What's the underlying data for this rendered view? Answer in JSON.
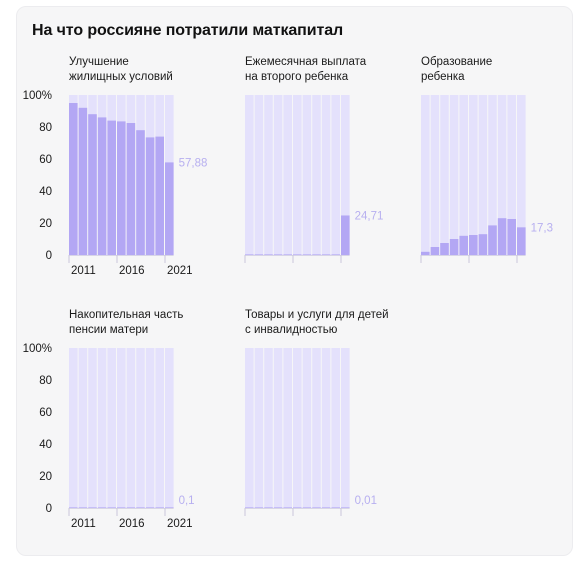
{
  "title": "На что россияне потратили маткапитал",
  "colors": {
    "bar": "#b3a7f4",
    "background_bar": "#e4e1fc",
    "card": "#f6f6f7",
    "value_label": "#b7aff0"
  },
  "chart_data": [
    {
      "type": "bar",
      "title_lines": [
        "Улучшение",
        "жилищных условий"
      ],
      "categories": [
        2011,
        2012,
        2013,
        2014,
        2015,
        2016,
        2017,
        2018,
        2019,
        2020,
        2021
      ],
      "values": [
        95,
        92,
        88,
        86,
        84,
        83.5,
        82.5,
        78,
        73.5,
        74,
        57.88
      ],
      "value_label": "57,88",
      "ylim": [
        0,
        100
      ],
      "yticks": [
        "0",
        "20",
        "40",
        "60",
        "80",
        "100%"
      ],
      "xticks": [
        "2011",
        "2016",
        "2021"
      ]
    },
    {
      "type": "bar",
      "title_lines": [
        "Ежемесячная выплата",
        "на второго ребенка"
      ],
      "categories": [
        2011,
        2012,
        2013,
        2014,
        2015,
        2016,
        2017,
        2018,
        2019,
        2020,
        2021
      ],
      "values": [
        0,
        0,
        0,
        0,
        0,
        0,
        0,
        0,
        0,
        0,
        24.71
      ],
      "value_label": "24,71",
      "ylim": [
        0,
        100
      ]
    },
    {
      "type": "bar",
      "title_lines": [
        "Образование",
        "ребенка"
      ],
      "categories": [
        2011,
        2012,
        2013,
        2014,
        2015,
        2016,
        2017,
        2018,
        2019,
        2020,
        2021
      ],
      "values": [
        2,
        5,
        7.5,
        10,
        12,
        12.5,
        13,
        18.5,
        23,
        22.5,
        17.3
      ],
      "value_label": "17,3",
      "ylim": [
        0,
        100
      ]
    },
    {
      "type": "bar",
      "title_lines": [
        "Накопительная часть",
        "пенсии матери"
      ],
      "categories": [
        2011,
        2012,
        2013,
        2014,
        2015,
        2016,
        2017,
        2018,
        2019,
        2020,
        2021
      ],
      "values": [
        0.2,
        0.2,
        0.2,
        0.2,
        0.2,
        0.2,
        0.2,
        0.2,
        0.2,
        0.2,
        0.1
      ],
      "value_label": "0,1",
      "ylim": [
        0,
        100
      ],
      "yticks": [
        "0",
        "20",
        "40",
        "60",
        "80",
        "100%"
      ],
      "xticks": [
        "2011",
        "2016",
        "2021"
      ]
    },
    {
      "type": "bar",
      "title_lines": [
        "Товары и услуги для детей",
        "с инвалидностью"
      ],
      "categories": [
        2011,
        2012,
        2013,
        2014,
        2015,
        2016,
        2017,
        2018,
        2019,
        2020,
        2021
      ],
      "values": [
        0,
        0,
        0,
        0,
        0,
        0,
        0,
        0,
        0,
        0,
        0.01
      ],
      "value_label": "0,01",
      "ylim": [
        0,
        100
      ]
    }
  ]
}
